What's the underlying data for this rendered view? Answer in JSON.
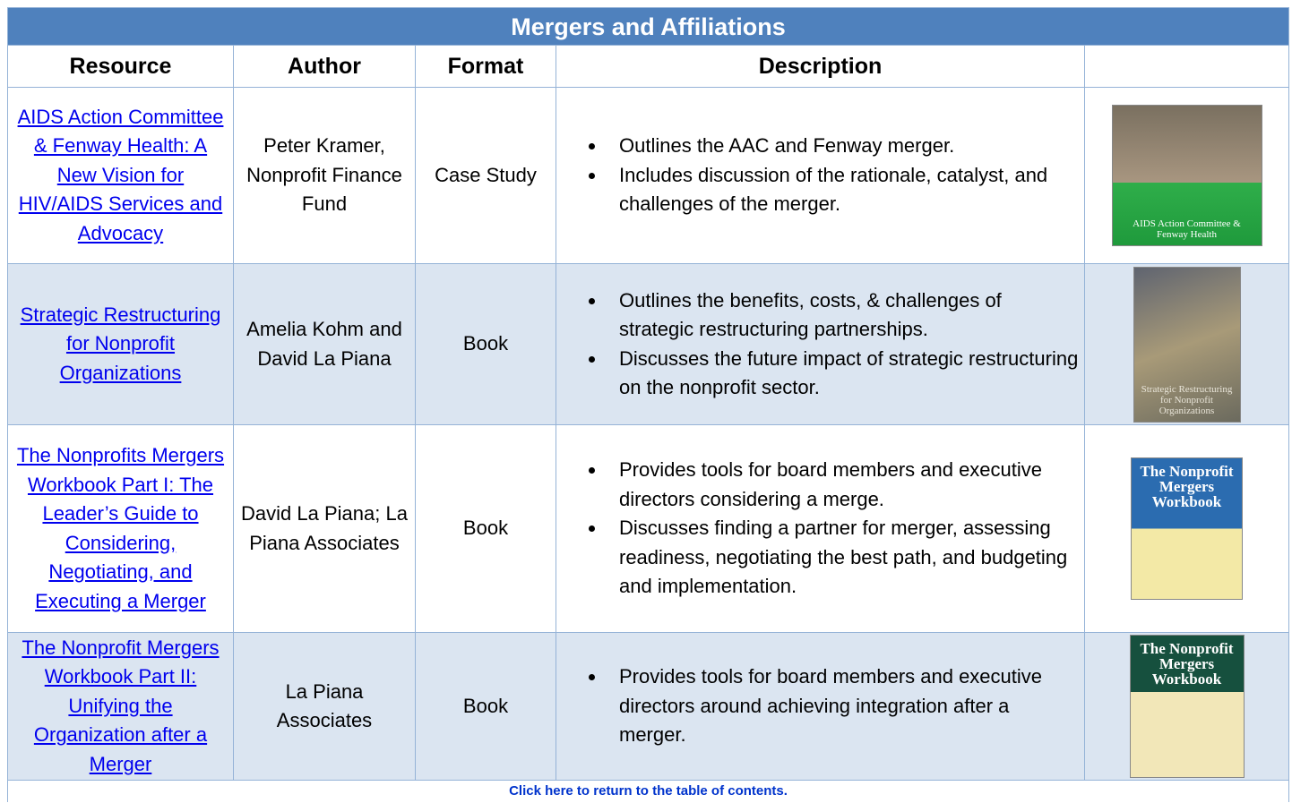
{
  "table": {
    "title": "Mergers and Affiliations",
    "headers": [
      "Resource",
      "Author",
      "Format",
      "Description"
    ],
    "rows": [
      {
        "resource": "AIDS Action Committee & Fenway Health: A New Vision for HIV/AIDS Services and Advocacy",
        "author": "Peter Kramer, Nonprofit Finance Fund",
        "format": "Case Study",
        "description": [
          "Outlines the AAC and Fenway merger.",
          "Includes discussion of the rationale, catalyst, and challenges of the merger."
        ],
        "cover": "AIDS Action Committee & Fenway Health"
      },
      {
        "resource": "Strategic Restructuring for Nonprofit Organizations",
        "author": "Amelia Kohm and David La Piana",
        "format": "Book",
        "description": [
          "Outlines the benefits, costs, & challenges of strategic restructuring partnerships.",
          "Discusses the future impact of strategic restructuring on the nonprofit sector."
        ],
        "cover": "Strategic Restructuring for Nonprofit Organizations"
      },
      {
        "resource": "The Nonprofits Mergers Workbook Part I: The Leader’s Guide to Considering, Negotiating, and Executing a Merger",
        "author": "David La Piana; La Piana Associates",
        "format": "Book",
        "description": [
          "Provides tools for board members and executive directors considering a merge.",
          "Discusses finding a partner for merger, assessing readiness, negotiating the best path, and budgeting and implementation."
        ],
        "cover": "The Nonprofit Mergers Workbook"
      },
      {
        "resource": "The Nonprofit Mergers Workbook Part II: Unifying the Organization after a Merger",
        "author": "La Piana Associates",
        "format": "Book",
        "description": [
          "Provides tools for board members and executive directors around achieving integration after a merger."
        ],
        "cover": "The Nonprofit Mergers Workbook"
      }
    ],
    "footer": "Click here to return to the table of contents."
  }
}
